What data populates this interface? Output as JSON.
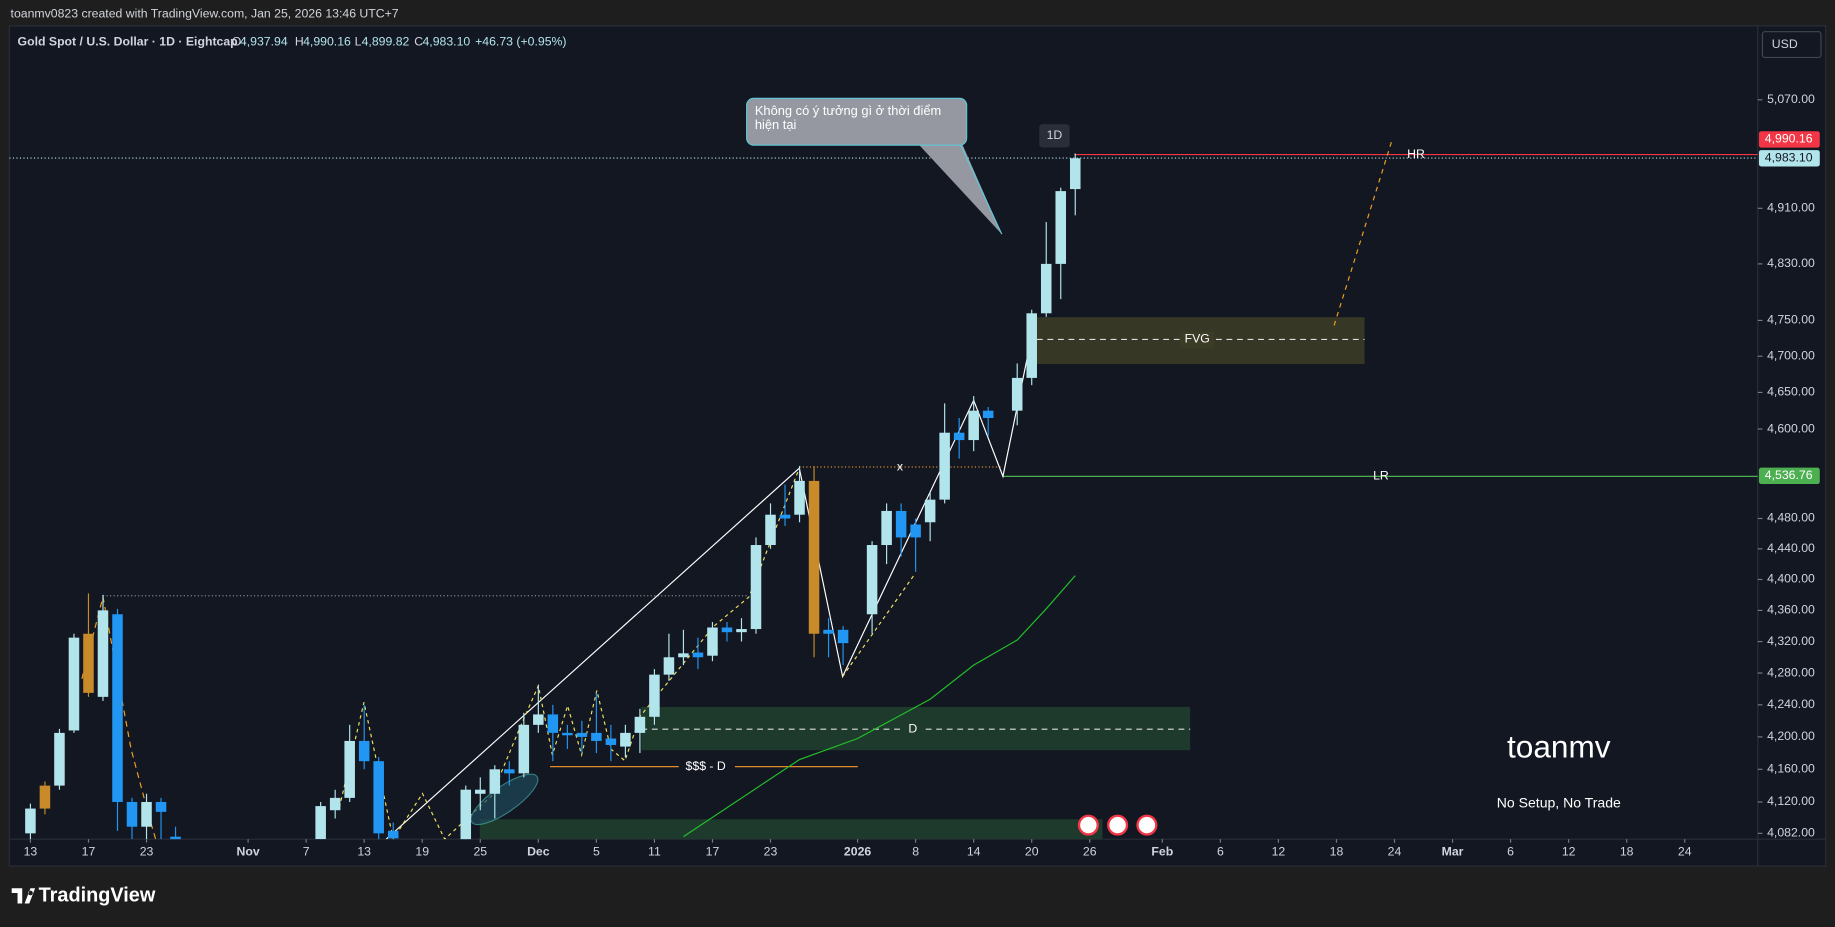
{
  "header": {
    "credit": "toanmv0823 created with TradingView.com, Jan 25, 2026 13:46 UTC+7",
    "symbol": "Gold Spot / U.S. Dollar · 1D · Eightcap",
    "o": "O",
    "open": "4,937.94",
    "h": "H",
    "high": "4,990.16",
    "l": "L",
    "low": "4,899.82",
    "c": "C",
    "close": "4,983.10",
    "change": "+46.73 (+0.95%)",
    "currency": "USD",
    "brand": "TradingView"
  },
  "annotations": {
    "callout": "Không có ý tưởng gì ở thời điểm hiện tại",
    "interval": "1D",
    "hr": "HR",
    "lr": "LR",
    "fvg": "FVG",
    "d": "D",
    "liq": "$$$ - D",
    "x": "x",
    "author": "toanmv",
    "note": "No Setup, No Trade"
  },
  "chart_data": {
    "type": "candlestick",
    "log_scale": true,
    "up_color": "#b2e4ec",
    "down_color": "#2196f3",
    "highlight_color": "#c98a2a",
    "highlights": [
      1,
      4,
      54
    ],
    "ylim": [
      4075,
      5182
    ],
    "yticks": [
      {
        "value": 5070,
        "label": "5,070.00"
      },
      {
        "value": 4910,
        "label": "4,910.00"
      },
      {
        "value": 4830,
        "label": "4,830.00"
      },
      {
        "value": 4750,
        "label": "4,750.00"
      },
      {
        "value": 4700,
        "label": "4,700.00"
      },
      {
        "value": 4650,
        "label": "4,650.00"
      },
      {
        "value": 4600,
        "label": "4,600.00"
      },
      {
        "value": 4480,
        "label": "4,480.00"
      },
      {
        "value": 4440,
        "label": "4,440.00"
      },
      {
        "value": 4400,
        "label": "4,400.00"
      },
      {
        "value": 4360,
        "label": "4,360.00"
      },
      {
        "value": 4320,
        "label": "4,320.00"
      },
      {
        "value": 4280,
        "label": "4,280.00"
      },
      {
        "value": 4240,
        "label": "4,240.00"
      },
      {
        "value": 4200,
        "label": "4,200.00"
      },
      {
        "value": 4160,
        "label": "4,160.00"
      },
      {
        "value": 4120,
        "label": "4,120.00"
      },
      {
        "value": 4082,
        "label": "4,082.00"
      }
    ],
    "xticks": [
      {
        "value": 0,
        "label": "13"
      },
      {
        "value": 4,
        "label": "17"
      },
      {
        "value": 8,
        "label": "23"
      },
      {
        "value": 15,
        "label": "Nov"
      },
      {
        "value": 19,
        "label": "7"
      },
      {
        "value": 23,
        "label": "13"
      },
      {
        "value": 27,
        "label": "19"
      },
      {
        "value": 31,
        "label": "25"
      },
      {
        "value": 35,
        "label": "Dec"
      },
      {
        "value": 39,
        "label": "5"
      },
      {
        "value": 43,
        "label": "11"
      },
      {
        "value": 47,
        "label": "17"
      },
      {
        "value": 51,
        "label": "23"
      },
      {
        "value": 57,
        "label": "2026"
      },
      {
        "value": 61,
        "label": "8"
      },
      {
        "value": 65,
        "label": "14"
      },
      {
        "value": 69,
        "label": "20"
      },
      {
        "value": 73,
        "label": "26"
      },
      {
        "value": 78,
        "label": "Feb"
      },
      {
        "value": 82,
        "label": "6"
      },
      {
        "value": 86,
        "label": "12"
      },
      {
        "value": 90,
        "label": "18"
      },
      {
        "value": 94,
        "label": "24"
      },
      {
        "value": 98,
        "label": "Mar"
      },
      {
        "value": 102,
        "label": "6"
      },
      {
        "value": 106,
        "label": "12"
      },
      {
        "value": 110,
        "label": "18"
      },
      {
        "value": 114,
        "label": "24"
      }
    ],
    "price_lines": [
      {
        "value": 4990.16,
        "label": "4,990.16",
        "color": "#f23645"
      },
      {
        "value": 4983.1,
        "label": "4,983.10",
        "color": "#b2e4ec"
      },
      {
        "value": 4536.76,
        "label": "4,536.76",
        "color": "#4caf50"
      }
    ],
    "ma": {
      "color": "#22c02a",
      "x": [
        45,
        53,
        57,
        62,
        65,
        68,
        70,
        72
      ],
      "values": [
        4078,
        4172,
        4198,
        4247,
        4290,
        4322,
        4362,
        4405
      ]
    },
    "candles": [
      {
        "o": 4082,
        "h": 4118,
        "l": 4075,
        "c": 4112
      },
      {
        "o": 4112,
        "h": 4145,
        "l": 4105,
        "c": 4140
      },
      {
        "o": 4140,
        "h": 4210,
        "l": 4135,
        "c": 4205
      },
      {
        "o": 4208,
        "h": 4330,
        "l": 4205,
        "c": 4325
      },
      {
        "o": 4255,
        "h": 4382,
        "l": 4250,
        "c": 4330
      },
      {
        "o": 4250,
        "h": 4380,
        "l": 4245,
        "c": 4360
      },
      {
        "o": 4355,
        "h": 4362,
        "l": 4085,
        "c": 4120
      },
      {
        "o": 4120,
        "h": 4125,
        "l": 4075,
        "c": 4090
      },
      {
        "o": 4090,
        "h": 4130,
        "l": 4075,
        "c": 4120
      },
      {
        "o": 4120,
        "h": 4125,
        "l": 4075,
        "c": 4108
      },
      {
        "o": 4078,
        "h": 4090,
        "l": 4050,
        "c": 4070
      },
      null,
      null,
      null,
      null,
      null,
      null,
      null,
      null,
      null,
      {
        "o": 4075,
        "h": 4120,
        "l": 4060,
        "c": 4115
      },
      {
        "o": 4110,
        "h": 4135,
        "l": 4100,
        "c": 4125
      },
      {
        "o": 4125,
        "h": 4215,
        "l": 4120,
        "c": 4195
      },
      {
        "o": 4195,
        "h": 4240,
        "l": 4160,
        "c": 4170
      },
      {
        "o": 4170,
        "h": 4175,
        "l": 4070,
        "c": 4082
      },
      {
        "o": 4085,
        "h": 4095,
        "l": 4060,
        "c": 4076
      },
      null,
      null,
      null,
      null,
      {
        "o": 4060,
        "h": 4140,
        "l": 4050,
        "c": 4135
      },
      {
        "o": 4130,
        "h": 4150,
        "l": 4110,
        "c": 4135
      },
      {
        "o": 4130,
        "h": 4165,
        "l": 4100,
        "c": 4160
      },
      {
        "o": 4160,
        "h": 4170,
        "l": 4140,
        "c": 4155
      },
      {
        "o": 4155,
        "h": 4230,
        "l": 4150,
        "c": 4215
      },
      {
        "o": 4215,
        "h": 4265,
        "l": 4205,
        "c": 4228
      },
      {
        "o": 4228,
        "h": 4240,
        "l": 4170,
        "c": 4205
      },
      {
        "o": 4205,
        "h": 4215,
        "l": 4185,
        "c": 4202
      },
      {
        "o": 4205,
        "h": 4220,
        "l": 4180,
        "c": 4200
      },
      {
        "o": 4205,
        "h": 4255,
        "l": 4180,
        "c": 4195
      },
      {
        "o": 4198,
        "h": 4215,
        "l": 4170,
        "c": 4190
      },
      {
        "o": 4188,
        "h": 4215,
        "l": 4175,
        "c": 4205
      },
      {
        "o": 4205,
        "h": 4235,
        "l": 4180,
        "c": 4225
      },
      {
        "o": 4225,
        "h": 4285,
        "l": 4215,
        "c": 4278
      },
      {
        "o": 4278,
        "h": 4330,
        "l": 4270,
        "c": 4300
      },
      {
        "o": 4300,
        "h": 4335,
        "l": 4290,
        "c": 4305
      },
      {
        "o": 4306,
        "h": 4325,
        "l": 4285,
        "c": 4300
      },
      {
        "o": 4302,
        "h": 4345,
        "l": 4295,
        "c": 4338
      },
      {
        "o": 4338,
        "h": 4345,
        "l": 4320,
        "c": 4332
      },
      {
        "o": 4332,
        "h": 4350,
        "l": 4320,
        "c": 4336
      },
      {
        "o": 4336,
        "h": 4455,
        "l": 4330,
        "c": 4445
      },
      {
        "o": 4445,
        "h": 4500,
        "l": 4440,
        "c": 4485
      },
      {
        "o": 4485,
        "h": 4525,
        "l": 4470,
        "c": 4480
      },
      {
        "o": 4485,
        "h": 4550,
        "l": 4475,
        "c": 4530
      },
      {
        "o": 4530,
        "h": 4550,
        "l": 4300,
        "c": 4330
      },
      {
        "o": 4335,
        "h": 4350,
        "l": 4300,
        "c": 4330
      },
      {
        "o": 4335,
        "h": 4340,
        "l": 4290,
        "c": 4318
      },
      null,
      {
        "o": 4355,
        "h": 4450,
        "l": 4330,
        "c": 4445
      },
      {
        "o": 4445,
        "h": 4500,
        "l": 4420,
        "c": 4490
      },
      {
        "o": 4490,
        "h": 4500,
        "l": 4430,
        "c": 4455
      },
      {
        "o": 4472,
        "h": 4480,
        "l": 4410,
        "c": 4455
      },
      {
        "o": 4475,
        "h": 4515,
        "l": 4450,
        "c": 4505
      },
      {
        "o": 4505,
        "h": 4635,
        "l": 4500,
        "c": 4595
      },
      {
        "o": 4595,
        "h": 4615,
        "l": 4560,
        "c": 4585
      },
      {
        "o": 4585,
        "h": 4645,
        "l": 4570,
        "c": 4625
      },
      {
        "o": 4625,
        "h": 4630,
        "l": 4590,
        "c": 4615
      },
      null,
      {
        "o": 4625,
        "h": 4690,
        "l": 4605,
        "c": 4670
      },
      {
        "o": 4670,
        "h": 4765,
        "l": 4660,
        "c": 4760
      },
      {
        "o": 4760,
        "h": 4890,
        "l": 4755,
        "c": 4830
      },
      {
        "o": 4830,
        "h": 4940,
        "l": 4780,
        "c": 4935
      },
      {
        "o": 4937.94,
        "h": 4990.16,
        "l": 4899.82,
        "c": 4983.1
      }
    ]
  }
}
